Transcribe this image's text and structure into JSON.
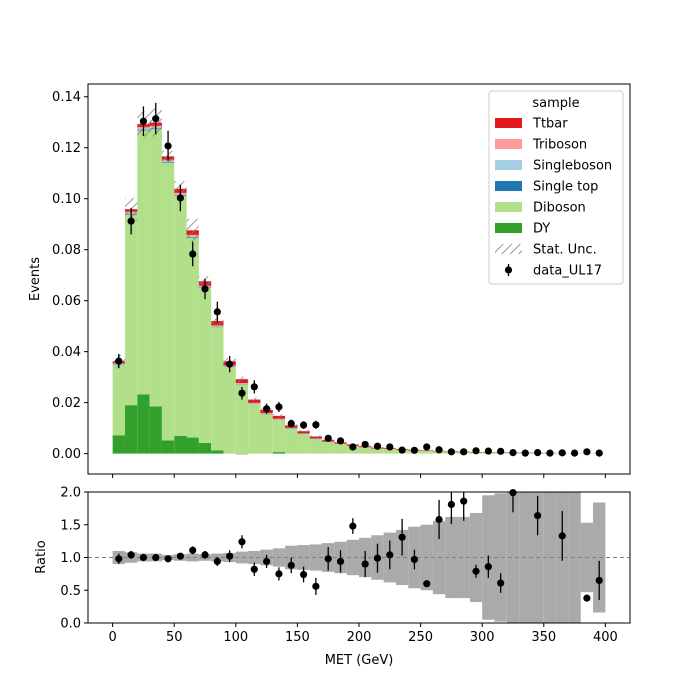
{
  "chart_data": {
    "type": "bar",
    "subtype": "stacked-histogram-with-ratio",
    "top_panel": {
      "ylabel": "Events",
      "ylim": [
        -0.008,
        0.145
      ],
      "yticks": [
        0.0,
        0.02,
        0.04,
        0.06,
        0.08,
        0.1,
        0.12,
        0.14
      ],
      "ytick_labels": [
        "0.00",
        "0.02",
        "0.04",
        "0.06",
        "0.08",
        "0.10",
        "0.12",
        "0.14"
      ],
      "bin_edges": [
        0,
        10,
        20,
        30,
        40,
        50,
        60,
        70,
        80,
        90,
        100,
        110,
        120,
        130,
        140,
        150,
        160,
        170,
        180,
        190,
        200,
        210,
        220,
        230,
        240,
        250,
        260,
        270,
        280,
        290,
        300,
        310,
        320,
        330,
        340,
        350,
        360,
        370,
        380,
        390,
        400
      ],
      "stack": {
        "DY": [
          0.0072,
          0.019,
          0.0232,
          0.0185,
          0.0052,
          0.007,
          0.0063,
          0.0042,
          0.0013,
          0.0,
          -0.0004,
          0.0,
          0.0,
          0.0006,
          0.0,
          0.0,
          0.0,
          0.0,
          0.0,
          0.0,
          0.0,
          0.0,
          0.0,
          0.0,
          0.0,
          0.0,
          0.0,
          0.0,
          0.0,
          0.0,
          0.0,
          0.0,
          0.0,
          0.0,
          0.0,
          0.0,
          0.0,
          0.0,
          0.0,
          0.0
        ],
        "Diboson": [
          0.0275,
          0.0748,
          0.1036,
          0.1088,
          0.1088,
          0.0942,
          0.0784,
          0.0608,
          0.0483,
          0.034,
          0.0276,
          0.0195,
          0.0155,
          0.0128,
          0.0098,
          0.0078,
          0.0058,
          0.0046,
          0.0038,
          0.003,
          0.0025,
          0.002,
          0.0018,
          0.0015,
          0.0012,
          0.0011,
          0.0009,
          0.0007,
          0.0006,
          0.0005,
          0.0004,
          0.0004,
          0.0003,
          0.0003,
          0.0002,
          0.0002,
          0.0002,
          0.0002,
          0.0001,
          0.0001
        ],
        "Single top": [
          0.0002,
          0.0003,
          0.0003,
          0.0003,
          0.0003,
          0.0003,
          0.0003,
          0.0002,
          0.0002,
          0.0002,
          0.0002,
          0.0001,
          0.0001,
          0.0001,
          0.0001,
          0.0001,
          0.0001,
          0.0,
          0.0,
          0.0,
          0.0,
          0.0,
          0.0,
          0.0,
          0.0,
          0.0,
          0.0,
          0.0,
          0.0,
          0.0,
          0.0,
          0.0,
          0.0,
          0.0,
          0.0,
          0.0,
          0.0,
          0.0,
          0.0,
          0.0
        ],
        "Singleboson": [
          0.0002,
          0.0003,
          0.0004,
          0.0004,
          0.0004,
          0.0003,
          0.0003,
          0.0002,
          0.0002,
          0.0001,
          0.0001,
          0.0001,
          0.0001,
          0.0001,
          0.0001,
          0.0,
          0.0,
          0.0,
          0.0,
          0.0,
          0.0,
          0.0,
          0.0,
          0.0,
          0.0,
          0.0,
          0.0,
          0.0,
          0.0,
          0.0,
          0.0,
          0.0,
          0.0,
          0.0,
          0.0,
          0.0,
          0.0,
          0.0,
          0.0,
          0.0
        ],
        "Triboson": [
          0.0003,
          0.0005,
          0.0006,
          0.0006,
          0.0006,
          0.0005,
          0.0005,
          0.0004,
          0.0003,
          0.0003,
          0.0002,
          0.0002,
          0.0002,
          0.0001,
          0.0001,
          0.0001,
          0.0001,
          0.0001,
          0.0001,
          0.0001,
          0.0,
          0.0,
          0.0,
          0.0,
          0.0,
          0.0,
          0.0,
          0.0,
          0.0,
          0.0,
          0.0,
          0.0,
          0.0,
          0.0,
          0.0,
          0.0,
          0.0,
          0.0,
          0.0,
          0.0
        ],
        "Ttbar": [
          0.0008,
          0.001,
          0.0012,
          0.0013,
          0.0013,
          0.0016,
          0.0018,
          0.0018,
          0.0017,
          0.0016,
          0.0015,
          0.0013,
          0.0012,
          0.0011,
          0.001,
          0.0008,
          0.0007,
          0.0006,
          0.0005,
          0.0005,
          0.0004,
          0.0004,
          0.0003,
          0.0003,
          0.0003,
          0.0002,
          0.0002,
          0.0002,
          0.0002,
          0.0001,
          0.0001,
          0.0001,
          0.0001,
          0.0001,
          0.0001,
          0.0001,
          0.0,
          0.0,
          0.0,
          0.0
        ]
      },
      "stat_unc": [
        0.0025,
        0.0045,
        0.005,
        0.0055,
        0.0022,
        0.003,
        0.0045,
        0.002,
        0.0015,
        0.0012,
        0.001,
        0.0008,
        0.0007,
        0.0006,
        0.0005,
        0.0004,
        0.0004,
        0.0003,
        0.0003,
        0.0003,
        0.0002,
        0.0002,
        0.0002,
        0.0002,
        0.0001,
        0.0001,
        0.0001,
        0.0001,
        0.0001,
        0.0001,
        0.0001,
        0.0001,
        0.0001,
        0.0001,
        0.0001,
        0.0001,
        0.0,
        0.0,
        0.0,
        0.0
      ],
      "data_UL17": {
        "x": [
          5,
          15,
          25,
          35,
          45,
          55,
          65,
          75,
          85,
          95,
          105,
          115,
          125,
          135,
          145,
          155,
          165,
          175,
          185,
          195,
          205,
          215,
          225,
          235,
          245,
          255,
          265,
          275,
          285,
          295,
          305,
          315,
          325,
          335,
          345,
          355,
          365,
          375,
          385,
          395
        ],
        "y": [
          0.0363,
          0.0912,
          0.1304,
          0.1314,
          0.1207,
          0.1003,
          0.0783,
          0.0646,
          0.0556,
          0.0351,
          0.0237,
          0.0262,
          0.0176,
          0.0183,
          0.0118,
          0.0112,
          0.0113,
          0.006,
          0.005,
          0.0026,
          0.0036,
          0.0029,
          0.0026,
          0.0014,
          0.0013,
          0.0026,
          0.0015,
          0.0007,
          0.0007,
          0.0011,
          0.001,
          0.0009,
          0.0004,
          0.0002,
          0.0004,
          0.0002,
          0.0003,
          0.0002,
          0.0007,
          0.0002
        ],
        "err": [
          0.0028,
          0.0052,
          0.0058,
          0.0062,
          0.006,
          0.0052,
          0.0048,
          0.004,
          0.004,
          0.0032,
          0.0025,
          0.0026,
          0.002,
          0.002,
          0.0015,
          0.0015,
          0.0016,
          0.0011,
          0.0009,
          0.0007,
          0.0008,
          0.0007,
          0.0007,
          0.0006,
          0.0005,
          0.0006,
          0.0005,
          0.0004,
          0.0004,
          0.0005,
          0.0004,
          0.0004,
          0.0004,
          0.0003,
          0.0003,
          0.0002,
          0.0003,
          0.0002,
          0.0004,
          0.0002
        ]
      }
    },
    "ratio_panel": {
      "ylabel": "Ratio",
      "ylim": [
        0.0,
        2.0
      ],
      "yticks": [
        0.0,
        0.5,
        1.0,
        1.5,
        2.0
      ],
      "ytick_labels": [
        "0.0",
        "0.5",
        "1.0",
        "1.5",
        "2.0"
      ],
      "reference_line": 1.0,
      "band_halfwidth": [
        0.1,
        0.08,
        0.06,
        0.06,
        0.04,
        0.05,
        0.06,
        0.05,
        0.06,
        0.07,
        0.09,
        0.1,
        0.12,
        0.14,
        0.18,
        0.19,
        0.2,
        0.22,
        0.24,
        0.27,
        0.3,
        0.34,
        0.38,
        0.42,
        0.47,
        0.5,
        0.56,
        0.62,
        0.62,
        0.68,
        0.95,
        0.98,
        1.0,
        1.0,
        1.0,
        1.0,
        1.0,
        1.0,
        0.53,
        0.84
      ],
      "points": {
        "x": [
          5,
          15,
          25,
          35,
          45,
          55,
          65,
          75,
          85,
          95,
          105,
          115,
          125,
          135,
          145,
          155,
          165,
          175,
          185,
          195,
          205,
          215,
          225,
          235,
          245,
          255,
          265,
          275,
          285,
          295,
          305,
          315,
          325,
          345,
          365,
          385,
          395
        ],
        "y": [
          0.98,
          1.04,
          1.0,
          1.0,
          0.98,
          1.02,
          1.11,
          1.04,
          0.94,
          1.02,
          1.24,
          0.82,
          0.94,
          0.75,
          0.88,
          0.74,
          0.56,
          0.98,
          0.94,
          1.48,
          0.9,
          0.99,
          1.04,
          1.31,
          0.97,
          0.6,
          1.58,
          1.81,
          1.86,
          0.79,
          0.86,
          0.61,
          1.99,
          1.64,
          1.33,
          0.38,
          0.65
        ],
        "err": [
          0.08,
          0.06,
          0.05,
          0.05,
          0.05,
          0.05,
          0.06,
          0.06,
          0.07,
          0.09,
          0.1,
          0.1,
          0.1,
          0.1,
          0.12,
          0.12,
          0.13,
          0.18,
          0.17,
          0.12,
          0.2,
          0.22,
          0.22,
          0.28,
          0.15,
          0.0,
          0.3,
          0.3,
          0.3,
          0.1,
          0.17,
          0.15,
          0.3,
          0.3,
          0.38,
          0.05,
          0.3
        ]
      }
    },
    "xlabel": "MET (GeV)",
    "xlim": [
      -20,
      420
    ],
    "xticks": [
      0,
      50,
      100,
      150,
      200,
      250,
      300,
      350,
      400
    ],
    "xtick_labels": [
      "0",
      "50",
      "100",
      "150",
      "200",
      "250",
      "300",
      "350",
      "400"
    ],
    "legend": {
      "placement": "top-right",
      "title": "sample",
      "entries": [
        {
          "label": "Ttbar",
          "color": "#e31a1c",
          "kind": "patch"
        },
        {
          "label": "Triboson",
          "color": "#fb9a99",
          "kind": "patch"
        },
        {
          "label": "Singleboson",
          "color": "#a6cee3",
          "kind": "patch"
        },
        {
          "label": "Single top",
          "color": "#1f78b4",
          "kind": "patch"
        },
        {
          "label": "Diboson",
          "color": "#b2df8a",
          "kind": "patch"
        },
        {
          "label": "DY",
          "color": "#33a02c",
          "kind": "patch"
        },
        {
          "label": "Stat. Unc.",
          "color": "#808080",
          "kind": "hatch"
        },
        {
          "label": "data_UL17",
          "color": "#000000",
          "kind": "errorbar"
        }
      ]
    },
    "stack_order": [
      "DY",
      "Diboson",
      "Single top",
      "Singleboson",
      "Triboson",
      "Ttbar"
    ],
    "colors": {
      "DY": "#33a02c",
      "Diboson": "#b2df8a",
      "Single top": "#1f78b4",
      "Singleboson": "#a6cee3",
      "Triboson": "#fb9a99",
      "Ttbar": "#e31a1c",
      "band": "#aaaaaa",
      "data": "#000000"
    }
  }
}
